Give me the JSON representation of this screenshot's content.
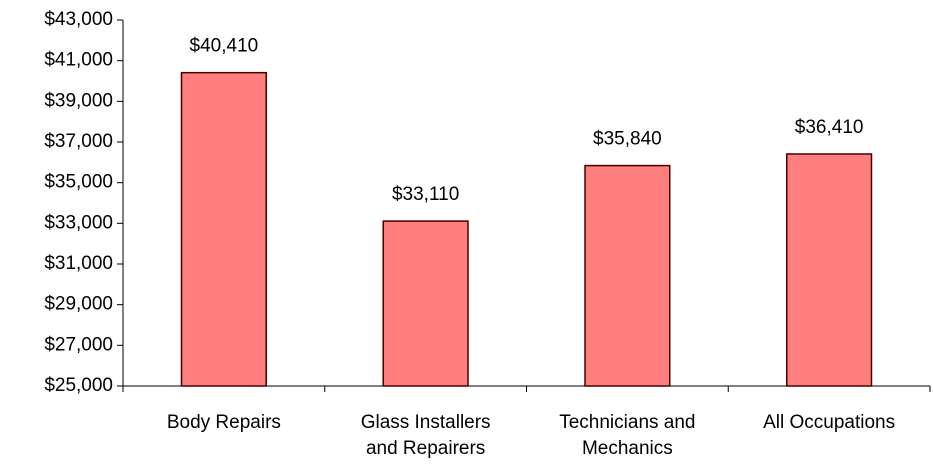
{
  "chart_data": {
    "type": "bar",
    "categories": [
      "Body Repairs",
      "Glass Installers and Repairers",
      "Technicians and Mechanics",
      "All Occupations"
    ],
    "values": [
      40410,
      33110,
      35840,
      36410
    ],
    "value_labels": [
      "$40,410",
      "$33,110",
      "$35,840",
      "$36,410"
    ],
    "color": "#ff7f7f",
    "ylim": [
      25000,
      43000
    ],
    "yticks": [
      {
        "value": 25000,
        "label": "$25,000"
      },
      {
        "value": 27000,
        "label": "$27,000"
      },
      {
        "value": 29000,
        "label": "$29,000"
      },
      {
        "value": 31000,
        "label": "$31,000"
      },
      {
        "value": 33000,
        "label": "$33,000"
      },
      {
        "value": 35000,
        "label": "$35,000"
      },
      {
        "value": 37000,
        "label": "$37,000"
      },
      {
        "value": 39000,
        "label": "$39,000"
      },
      {
        "value": 41000,
        "label": "$41,000"
      },
      {
        "value": 43000,
        "label": "$43,000"
      }
    ],
    "grid": false
  }
}
